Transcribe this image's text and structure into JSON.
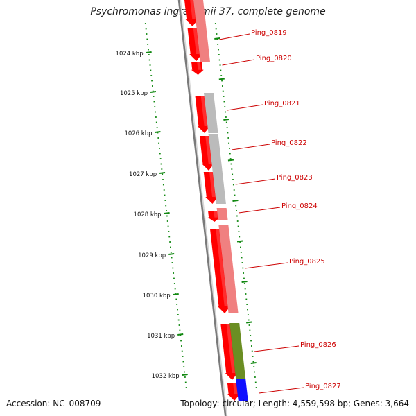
{
  "title": "Psychromonas ingrahamii 37, complete genome",
  "accession_text": "Accession: NC_008709",
  "summary_text": "Topology: circular; Length: 4,559,598 bp; Genes: 3,664",
  "colors": {
    "cds_forward": "#ff0000",
    "feature_pink": "#f08080",
    "feature_gray": "#bbbbbb",
    "feature_olive": "#6b8e23",
    "feature_blue": "#1010ff",
    "tick_green": "#118811",
    "label_red": "#cc0000"
  },
  "ruler_labels": [
    "1024 kbp",
    "1025 kbp",
    "1026 kbp",
    "1027 kbp",
    "1028 kbp",
    "1029 kbp",
    "1030 kbp",
    "1031 kbp",
    "1032 kbp"
  ],
  "gene_labels": [
    "Ping_0819",
    "Ping_0820",
    "Ping_0821",
    "Ping_0822",
    "Ping_0823",
    "Ping_0824",
    "Ping_0825",
    "Ping_0826",
    "Ping_0827"
  ]
}
